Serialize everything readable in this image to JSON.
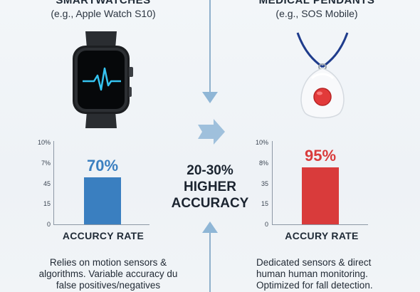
{
  "left": {
    "title": "SMARTWATCHES",
    "subtitle": "(e.g., Apple Watch S10)",
    "device_icon": "smartwatch-icon",
    "bar_value_label": "70%",
    "bar_fraction": 0.56,
    "bar_color": "#3a7fc0",
    "value_color": "#3a7fc0",
    "ticks": [
      "10%",
      "7%",
      "45",
      "15",
      "0"
    ],
    "rate_label": "ACCURCY RATE",
    "description_lines": [
      "Relies on motion sensors &",
      "algorithms. Variable accuracy du",
      "false positives/negatives"
    ]
  },
  "right": {
    "title": "MEDICAL PENDANTS",
    "subtitle": "(e.g., SOS Mobile)",
    "device_icon": "medical-pendant-icon",
    "bar_value_label": "95%",
    "bar_fraction": 0.68,
    "bar_color": "#d93b3b",
    "value_color": "#d93b3b",
    "ticks": [
      "10%",
      "8%",
      "35",
      "15",
      "0"
    ],
    "rate_label": "ACCURY RATE",
    "description_lines": [
      "Dedicated sensors & direct",
      "human human monitoring.",
      "Optimized for fall detection."
    ]
  },
  "center": {
    "lines": [
      "20-30%",
      "HIGHER",
      "ACCURACY"
    ],
    "arrow_color": "#8fb6d6"
  }
}
